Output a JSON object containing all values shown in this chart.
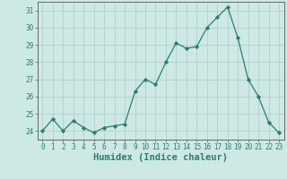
{
  "x": [
    0,
    1,
    2,
    3,
    4,
    5,
    6,
    7,
    8,
    9,
    10,
    11,
    12,
    13,
    14,
    15,
    16,
    17,
    18,
    19,
    20,
    21,
    22,
    23
  ],
  "y": [
    24.0,
    24.7,
    24.0,
    24.6,
    24.2,
    23.9,
    24.2,
    24.3,
    24.4,
    26.3,
    27.0,
    26.7,
    28.0,
    29.1,
    28.8,
    28.9,
    30.0,
    30.6,
    31.2,
    29.4,
    27.0,
    26.0,
    24.5,
    23.9
  ],
  "xlabel": "Humidex (Indice chaleur)",
  "ylim": [
    23.5,
    31.5
  ],
  "xlim": [
    -0.5,
    23.5
  ],
  "yticks": [
    24,
    25,
    26,
    27,
    28,
    29,
    30,
    31
  ],
  "xticks": [
    0,
    1,
    2,
    3,
    4,
    5,
    6,
    7,
    8,
    9,
    10,
    11,
    12,
    13,
    14,
    15,
    16,
    17,
    18,
    19,
    20,
    21,
    22,
    23
  ],
  "line_color": "#2e7d6e",
  "marker": "D",
  "marker_size": 2.2,
  "bg_color": "#cde8e5",
  "grid_color": "#aaccca",
  "spine_color": "#555555",
  "tick_color": "#2e7d6e",
  "tick_fontsize": 5.5,
  "xlabel_fontsize": 7.5
}
